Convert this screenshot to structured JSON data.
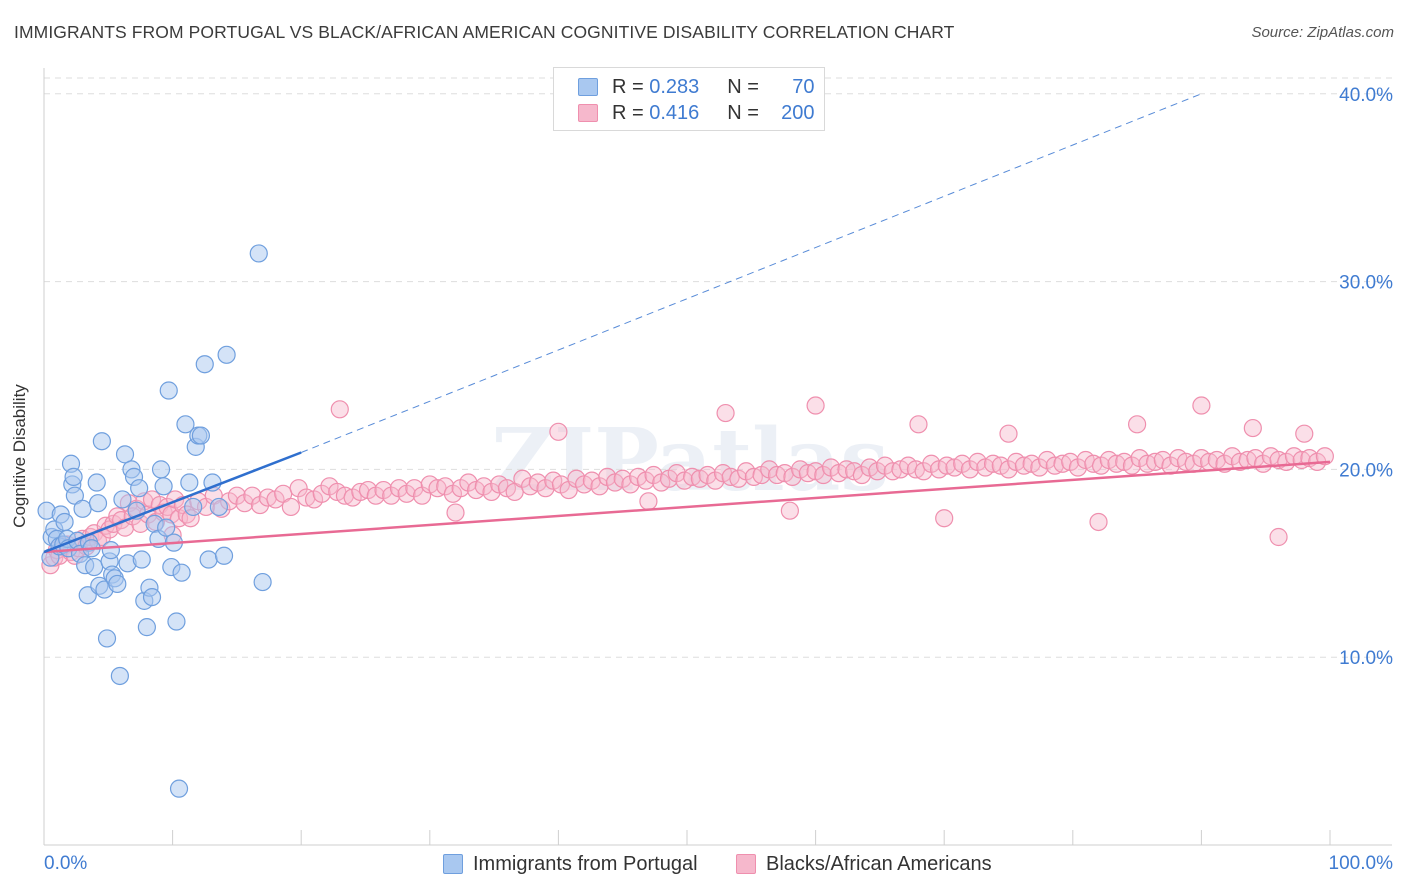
{
  "title": "IMMIGRANTS FROM PORTUGAL VS BLACK/AFRICAN AMERICAN COGNITIVE DISABILITY CORRELATION CHART",
  "source": "Source: ZipAtlas.com",
  "watermark": "ZIPatlas",
  "legend": {
    "rows": [
      {
        "r_label": "R =",
        "r_value": "0.283",
        "n_label": "N =",
        "n_value": "70"
      },
      {
        "r_label": "R =",
        "r_value": "0.416",
        "n_label": "N =",
        "n_value": "200"
      }
    ]
  },
  "bottom_legend": {
    "items": [
      "Immigrants from Portugal",
      "Blacks/African Americans"
    ]
  },
  "colors": {
    "blue_fill": "#a9c8f0",
    "blue_stroke": "#6f9fde",
    "blue_line": "#2f6fce",
    "pink_fill": "#f6b8cc",
    "pink_stroke": "#ef8fae",
    "pink_line": "#e86a94",
    "axis_text": "#3f7bd1",
    "grid": "#dddddd"
  },
  "chart_data": {
    "type": "scatter",
    "title": "IMMIGRANTS FROM PORTUGAL VS BLACK/AFRICAN AMERICAN COGNITIVE DISABILITY CORRELATION CHART",
    "xlabel": "",
    "ylabel": "Cognitive Disability",
    "xlim": [
      0,
      100
    ],
    "ylim": [
      0,
      41
    ],
    "x_tick_labels": [
      "0.0%",
      "100.0%"
    ],
    "y_tick_values": [
      10,
      20,
      30,
      40
    ],
    "y_tick_labels": [
      "10.0%",
      "20.0%",
      "30.0%",
      "40.0%"
    ],
    "grid": true,
    "legend_position": "top-center",
    "series": [
      {
        "name": "Immigrants from Portugal",
        "r": 0.283,
        "n": 70,
        "trend": {
          "x": [
            0,
            20
          ],
          "y": [
            15.6,
            20.9
          ],
          "dashed_extension_to": [
            90,
            40.0
          ]
        },
        "points": [
          [
            0.2,
            17.8
          ],
          [
            0.5,
            15.3
          ],
          [
            0.6,
            16.4
          ],
          [
            0.8,
            16.8
          ],
          [
            1,
            16.3
          ],
          [
            1.2,
            15.9
          ],
          [
            1.3,
            17.6
          ],
          [
            1.5,
            16.0
          ],
          [
            1.6,
            17.2
          ],
          [
            1.8,
            16.3
          ],
          [
            1.9,
            15.8
          ],
          [
            2.1,
            20.3
          ],
          [
            2.2,
            19.2
          ],
          [
            2.3,
            19.6
          ],
          [
            2.4,
            18.6
          ],
          [
            2.6,
            16.2
          ],
          [
            2.8,
            15.5
          ],
          [
            3,
            17.9
          ],
          [
            3.2,
            14.9
          ],
          [
            3.4,
            13.3
          ],
          [
            3.5,
            16.1
          ],
          [
            3.7,
            15.8
          ],
          [
            3.9,
            14.8
          ],
          [
            4.1,
            19.3
          ],
          [
            4.2,
            18.2
          ],
          [
            4.3,
            13.8
          ],
          [
            4.5,
            21.5
          ],
          [
            4.7,
            13.6
          ],
          [
            4.9,
            11.0
          ],
          [
            5.1,
            15.1
          ],
          [
            5.2,
            15.7
          ],
          [
            5.3,
            14.4
          ],
          [
            5.5,
            14.2
          ],
          [
            5.7,
            13.9
          ],
          [
            5.9,
            9.0
          ],
          [
            6.1,
            18.4
          ],
          [
            6.3,
            20.8
          ],
          [
            6.5,
            15.0
          ],
          [
            6.8,
            20.0
          ],
          [
            7,
            19.6
          ],
          [
            7.2,
            17.8
          ],
          [
            7.4,
            19.0
          ],
          [
            7.6,
            15.2
          ],
          [
            7.8,
            13.0
          ],
          [
            8,
            11.6
          ],
          [
            8.2,
            13.7
          ],
          [
            8.4,
            13.2
          ],
          [
            8.6,
            17.1
          ],
          [
            8.9,
            16.3
          ],
          [
            9.1,
            20.0
          ],
          [
            9.3,
            19.1
          ],
          [
            9.5,
            16.9
          ],
          [
            9.7,
            24.2
          ],
          [
            9.9,
            14.8
          ],
          [
            10.1,
            16.1
          ],
          [
            10.3,
            11.9
          ],
          [
            10.5,
            3.0
          ],
          [
            10.7,
            14.5
          ],
          [
            11,
            22.4
          ],
          [
            11.3,
            19.3
          ],
          [
            11.6,
            18.0
          ],
          [
            11.8,
            21.2
          ],
          [
            12,
            21.8
          ],
          [
            12.2,
            21.8
          ],
          [
            12.5,
            25.6
          ],
          [
            12.8,
            15.2
          ],
          [
            13.1,
            19.3
          ],
          [
            13.6,
            18.0
          ],
          [
            14.0,
            15.4
          ],
          [
            14.2,
            26.1
          ],
          [
            16.7,
            31.5
          ],
          [
            17.0,
            14.0
          ]
        ]
      },
      {
        "name": "Blacks/African Americans",
        "r": 0.416,
        "n": 200,
        "trend": {
          "x": [
            0,
            100
          ],
          "y": [
            15.6,
            20.4
          ]
        },
        "points": [
          [
            0.5,
            14.9
          ],
          [
            0.8,
            15.3
          ],
          [
            1,
            15.7
          ],
          [
            1.2,
            15.4
          ],
          [
            1.5,
            15.9
          ],
          [
            1.8,
            16.0
          ],
          [
            2.1,
            15.6
          ],
          [
            2.4,
            15.4
          ],
          [
            2.7,
            15.8
          ],
          [
            3,
            16.3
          ],
          [
            3.3,
            15.9
          ],
          [
            3.6,
            16.4
          ],
          [
            3.9,
            16.6
          ],
          [
            4.2,
            16.2
          ],
          [
            4.5,
            16.4
          ],
          [
            4.8,
            17.0
          ],
          [
            5.1,
            16.8
          ],
          [
            5.4,
            17.1
          ],
          [
            5.7,
            17.5
          ],
          [
            6,
            17.3
          ],
          [
            6.3,
            16.9
          ],
          [
            6.6,
            18.2
          ],
          [
            6.9,
            17.5
          ],
          [
            7.2,
            17.9
          ],
          [
            7.5,
            17.1
          ],
          [
            7.8,
            18.3
          ],
          [
            8.1,
            17.6
          ],
          [
            8.4,
            18.4
          ],
          [
            8.7,
            17.2
          ],
          [
            9,
            18.1
          ],
          [
            9.3,
            17.7
          ],
          [
            9.6,
            18.0
          ],
          [
            9.9,
            17.6
          ],
          [
            10.2,
            18.4
          ],
          [
            10.5,
            17.4
          ],
          [
            10.8,
            18.1
          ],
          [
            11.1,
            17.6
          ],
          [
            11.4,
            17.4
          ],
          [
            12,
            18.3
          ],
          [
            12.6,
            18.0
          ],
          [
            13.2,
            18.6
          ],
          [
            13.8,
            17.9
          ],
          [
            14.4,
            18.3
          ],
          [
            15,
            18.6
          ],
          [
            15.6,
            18.2
          ],
          [
            16.2,
            18.6
          ],
          [
            16.8,
            18.1
          ],
          [
            17.4,
            18.5
          ],
          [
            18,
            18.4
          ],
          [
            18.6,
            18.7
          ],
          [
            19.2,
            18.0
          ],
          [
            19.8,
            19.0
          ],
          [
            20.4,
            18.5
          ],
          [
            21,
            18.4
          ],
          [
            21.6,
            18.7
          ],
          [
            22.2,
            19.1
          ],
          [
            22.8,
            18.8
          ],
          [
            23.4,
            18.6
          ],
          [
            24,
            18.5
          ],
          [
            24.6,
            18.8
          ],
          [
            25.2,
            18.9
          ],
          [
            25.8,
            18.6
          ],
          [
            26.4,
            18.9
          ],
          [
            27,
            18.6
          ],
          [
            27.6,
            19.0
          ],
          [
            28.2,
            18.7
          ],
          [
            28.8,
            19.0
          ],
          [
            29.4,
            18.6
          ],
          [
            30,
            19.2
          ],
          [
            30.6,
            19.0
          ],
          [
            31.2,
            19.1
          ],
          [
            31.8,
            18.7
          ],
          [
            32.4,
            19.0
          ],
          [
            33,
            19.3
          ],
          [
            33.6,
            18.9
          ],
          [
            34.2,
            19.1
          ],
          [
            34.8,
            18.8
          ],
          [
            35.4,
            19.2
          ],
          [
            36,
            19.0
          ],
          [
            36.6,
            18.8
          ],
          [
            37.2,
            19.5
          ],
          [
            37.8,
            19.1
          ],
          [
            38.4,
            19.3
          ],
          [
            39,
            19.0
          ],
          [
            39.6,
            19.4
          ],
          [
            40.2,
            19.2
          ],
          [
            40.8,
            18.9
          ],
          [
            41.4,
            19.5
          ],
          [
            42,
            19.2
          ],
          [
            42.6,
            19.4
          ],
          [
            43.2,
            19.1
          ],
          [
            43.8,
            19.6
          ],
          [
            44.4,
            19.3
          ],
          [
            45,
            19.5
          ],
          [
            45.6,
            19.2
          ],
          [
            46.2,
            19.6
          ],
          [
            46.8,
            19.4
          ],
          [
            47.4,
            19.7
          ],
          [
            48,
            19.3
          ],
          [
            48.6,
            19.5
          ],
          [
            49.2,
            19.8
          ],
          [
            49.8,
            19.4
          ],
          [
            50.4,
            19.6
          ],
          [
            51,
            19.5
          ],
          [
            51.6,
            19.7
          ],
          [
            52.2,
            19.4
          ],
          [
            52.8,
            19.8
          ],
          [
            53.4,
            19.6
          ],
          [
            54,
            19.5
          ],
          [
            54.6,
            19.9
          ],
          [
            55.2,
            19.6
          ],
          [
            55.8,
            19.7
          ],
          [
            56.4,
            20.0
          ],
          [
            57,
            19.7
          ],
          [
            57.6,
            19.8
          ],
          [
            58.2,
            19.6
          ],
          [
            58.8,
            20.0
          ],
          [
            59.4,
            19.8
          ],
          [
            60,
            19.9
          ],
          [
            60.6,
            19.7
          ],
          [
            61.2,
            20.1
          ],
          [
            61.8,
            19.8
          ],
          [
            62.4,
            20.0
          ],
          [
            63,
            19.9
          ],
          [
            63.6,
            19.7
          ],
          [
            64.2,
            20.1
          ],
          [
            64.8,
            19.9
          ],
          [
            65.4,
            20.2
          ],
          [
            66,
            19.9
          ],
          [
            66.6,
            20.0
          ],
          [
            67.2,
            20.2
          ],
          [
            67.8,
            20.0
          ],
          [
            68.4,
            19.9
          ],
          [
            69,
            20.3
          ],
          [
            69.6,
            20.0
          ],
          [
            70.2,
            20.2
          ],
          [
            70.8,
            20.1
          ],
          [
            71.4,
            20.3
          ],
          [
            72,
            20.0
          ],
          [
            72.6,
            20.4
          ],
          [
            73.2,
            20.1
          ],
          [
            73.8,
            20.3
          ],
          [
            74.4,
            20.2
          ],
          [
            75,
            20.0
          ],
          [
            75.6,
            20.4
          ],
          [
            76.2,
            20.2
          ],
          [
            76.8,
            20.3
          ],
          [
            77.4,
            20.1
          ],
          [
            78,
            20.5
          ],
          [
            78.6,
            20.2
          ],
          [
            79.2,
            20.3
          ],
          [
            79.8,
            20.4
          ],
          [
            80.4,
            20.1
          ],
          [
            81,
            20.5
          ],
          [
            81.6,
            20.3
          ],
          [
            82.2,
            20.2
          ],
          [
            82.8,
            20.5
          ],
          [
            83.4,
            20.3
          ],
          [
            84,
            20.4
          ],
          [
            84.6,
            20.2
          ],
          [
            85.2,
            20.6
          ],
          [
            85.8,
            20.3
          ],
          [
            86.4,
            20.4
          ],
          [
            87,
            20.5
          ],
          [
            87.6,
            20.2
          ],
          [
            88.2,
            20.6
          ],
          [
            88.8,
            20.4
          ],
          [
            89.4,
            20.3
          ],
          [
            90,
            20.6
          ],
          [
            90.6,
            20.4
          ],
          [
            91.2,
            20.5
          ],
          [
            91.8,
            20.3
          ],
          [
            92.4,
            20.7
          ],
          [
            93,
            20.4
          ],
          [
            93.6,
            20.5
          ],
          [
            94.2,
            20.6
          ],
          [
            94.8,
            20.3
          ],
          [
            95.4,
            20.7
          ],
          [
            96,
            20.5
          ],
          [
            96.6,
            20.4
          ],
          [
            97.2,
            20.7
          ],
          [
            97.8,
            20.5
          ],
          [
            98.4,
            20.6
          ],
          [
            99,
            20.4
          ],
          [
            99.6,
            20.7
          ],
          [
            23,
            23.2
          ],
          [
            40,
            22.0
          ],
          [
            53,
            23.0
          ],
          [
            60,
            23.4
          ],
          [
            68,
            22.4
          ],
          [
            75,
            21.9
          ],
          [
            85,
            22.4
          ],
          [
            90,
            23.4
          ],
          [
            94,
            22.2
          ],
          [
            98,
            21.9
          ],
          [
            10,
            16.5
          ],
          [
            32,
            17.7
          ],
          [
            47,
            18.3
          ],
          [
            58,
            17.8
          ],
          [
            70,
            17.4
          ],
          [
            82,
            17.2
          ],
          [
            96,
            16.4
          ]
        ]
      }
    ]
  }
}
